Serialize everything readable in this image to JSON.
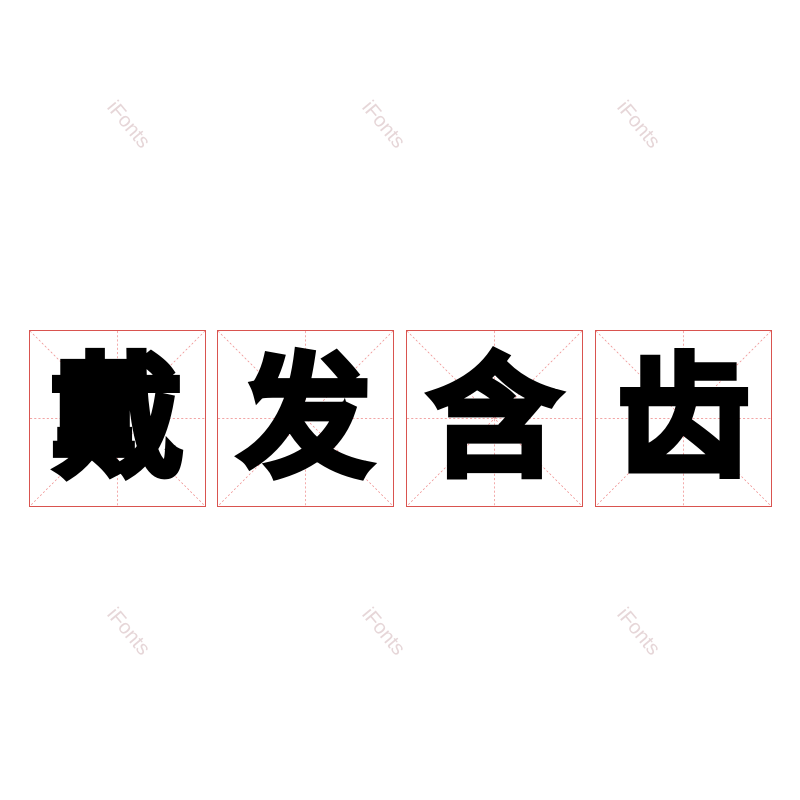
{
  "characters": [
    "戴",
    "发",
    "含",
    "齿"
  ],
  "watermark": "iFonts",
  "colors": {
    "grid_border": "#d9534f",
    "grid_guides": "#e88",
    "glyph": "#000000",
    "watermark": "#e6d6d8"
  }
}
